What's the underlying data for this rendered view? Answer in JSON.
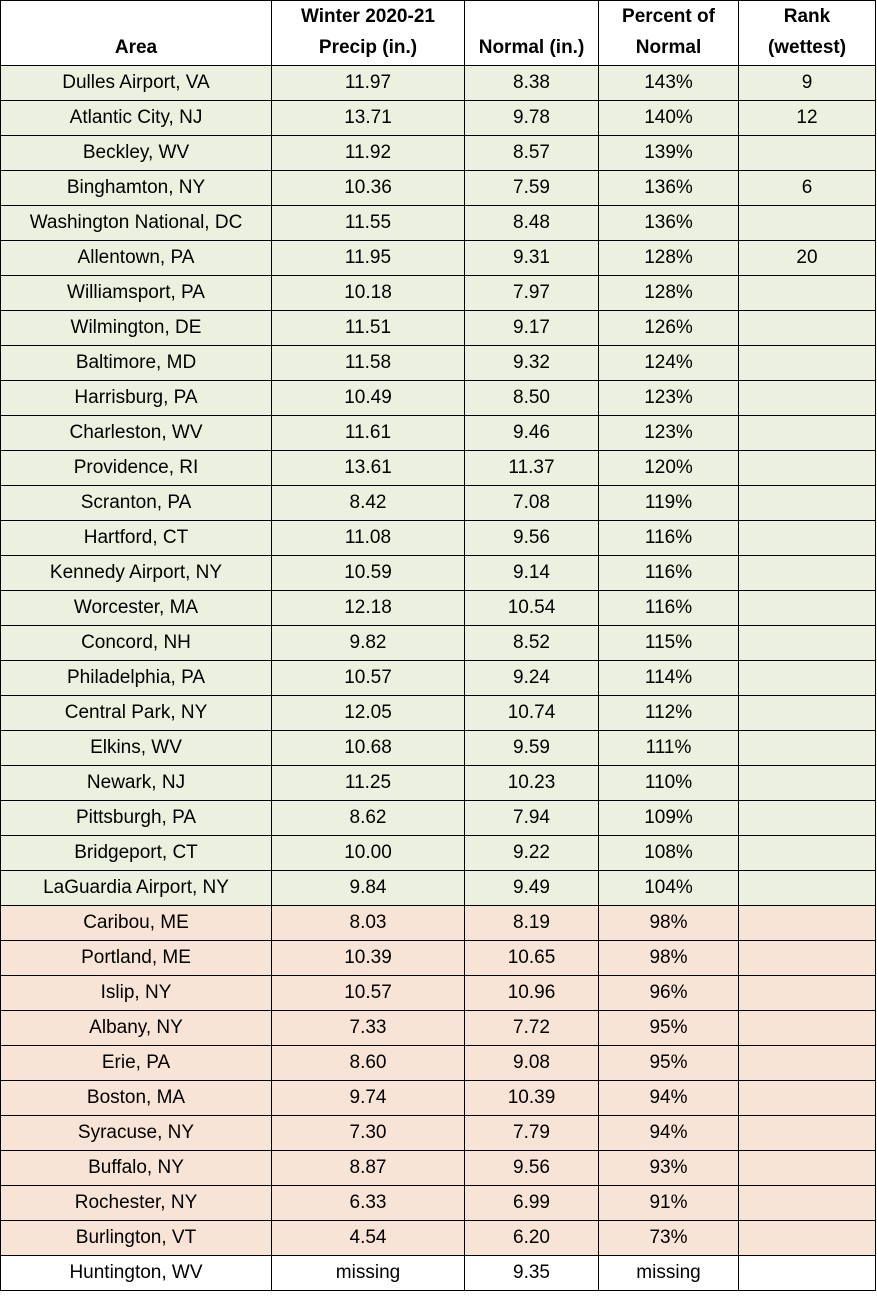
{
  "table": {
    "headers": {
      "area": "Area",
      "precip_line1": "Winter 2020-21",
      "precip_line2": "Precip (in.)",
      "normal": "Normal (in.)",
      "percent_line1": "Percent of",
      "percent_line2": "Normal",
      "rank_line1": "Rank",
      "rank_line2": "(wettest)"
    },
    "colors": {
      "above_normal_fill": "#ebf1de",
      "below_normal_fill": "#f8e4d6",
      "missing_fill": "#ffffff"
    },
    "rows": [
      {
        "area": "Dulles Airport, VA",
        "precip": "11.97",
        "normal": "8.38",
        "percent": "143%",
        "rank": "9",
        "category": "above"
      },
      {
        "area": "Atlantic City, NJ",
        "precip": "13.71",
        "normal": "9.78",
        "percent": "140%",
        "rank": "12",
        "category": "above"
      },
      {
        "area": "Beckley, WV",
        "precip": "11.92",
        "normal": "8.57",
        "percent": "139%",
        "rank": "",
        "category": "above"
      },
      {
        "area": "Binghamton, NY",
        "precip": "10.36",
        "normal": "7.59",
        "percent": "136%",
        "rank": "6",
        "category": "above"
      },
      {
        "area": "Washington National, DC",
        "precip": "11.55",
        "normal": "8.48",
        "percent": "136%",
        "rank": "",
        "category": "above"
      },
      {
        "area": "Allentown, PA",
        "precip": "11.95",
        "normal": "9.31",
        "percent": "128%",
        "rank": "20",
        "category": "above"
      },
      {
        "area": "Williamsport, PA",
        "precip": "10.18",
        "normal": "7.97",
        "percent": "128%",
        "rank": "",
        "category": "above"
      },
      {
        "area": "Wilmington, DE",
        "precip": "11.51",
        "normal": "9.17",
        "percent": "126%",
        "rank": "",
        "category": "above"
      },
      {
        "area": "Baltimore, MD",
        "precip": "11.58",
        "normal": "9.32",
        "percent": "124%",
        "rank": "",
        "category": "above"
      },
      {
        "area": "Harrisburg, PA",
        "precip": "10.49",
        "normal": "8.50",
        "percent": "123%",
        "rank": "",
        "category": "above"
      },
      {
        "area": "Charleston, WV",
        "precip": "11.61",
        "normal": "9.46",
        "percent": "123%",
        "rank": "",
        "category": "above"
      },
      {
        "area": "Providence, RI",
        "precip": "13.61",
        "normal": "11.37",
        "percent": "120%",
        "rank": "",
        "category": "above"
      },
      {
        "area": "Scranton, PA",
        "precip": "8.42",
        "normal": "7.08",
        "percent": "119%",
        "rank": "",
        "category": "above"
      },
      {
        "area": "Hartford, CT",
        "precip": "11.08",
        "normal": "9.56",
        "percent": "116%",
        "rank": "",
        "category": "above"
      },
      {
        "area": "Kennedy Airport, NY",
        "precip": "10.59",
        "normal": "9.14",
        "percent": "116%",
        "rank": "",
        "category": "above"
      },
      {
        "area": "Worcester, MA",
        "precip": "12.18",
        "normal": "10.54",
        "percent": "116%",
        "rank": "",
        "category": "above"
      },
      {
        "area": "Concord, NH",
        "precip": "9.82",
        "normal": "8.52",
        "percent": "115%",
        "rank": "",
        "category": "above"
      },
      {
        "area": "Philadelphia, PA",
        "precip": "10.57",
        "normal": "9.24",
        "percent": "114%",
        "rank": "",
        "category": "above"
      },
      {
        "area": "Central Park, NY",
        "precip": "12.05",
        "normal": "10.74",
        "percent": "112%",
        "rank": "",
        "category": "above"
      },
      {
        "area": "Elkins, WV",
        "precip": "10.68",
        "normal": "9.59",
        "percent": "111%",
        "rank": "",
        "category": "above"
      },
      {
        "area": "Newark, NJ",
        "precip": "11.25",
        "normal": "10.23",
        "percent": "110%",
        "rank": "",
        "category": "above"
      },
      {
        "area": "Pittsburgh, PA",
        "precip": "8.62",
        "normal": "7.94",
        "percent": "109%",
        "rank": "",
        "category": "above"
      },
      {
        "area": "Bridgeport, CT",
        "precip": "10.00",
        "normal": "9.22",
        "percent": "108%",
        "rank": "",
        "category": "above"
      },
      {
        "area": "LaGuardia Airport, NY",
        "precip": "9.84",
        "normal": "9.49",
        "percent": "104%",
        "rank": "",
        "category": "above"
      },
      {
        "area": "Caribou, ME",
        "precip": "8.03",
        "normal": "8.19",
        "percent": "98%",
        "rank": "",
        "category": "below"
      },
      {
        "area": "Portland, ME",
        "precip": "10.39",
        "normal": "10.65",
        "percent": "98%",
        "rank": "",
        "category": "below"
      },
      {
        "area": "Islip, NY",
        "precip": "10.57",
        "normal": "10.96",
        "percent": "96%",
        "rank": "",
        "category": "below"
      },
      {
        "area": "Albany, NY",
        "precip": "7.33",
        "normal": "7.72",
        "percent": "95%",
        "rank": "",
        "category": "below"
      },
      {
        "area": "Erie, PA",
        "precip": "8.60",
        "normal": "9.08",
        "percent": "95%",
        "rank": "",
        "category": "below"
      },
      {
        "area": "Boston, MA",
        "precip": "9.74",
        "normal": "10.39",
        "percent": "94%",
        "rank": "",
        "category": "below"
      },
      {
        "area": "Syracuse, NY",
        "precip": "7.30",
        "normal": "7.79",
        "percent": "94%",
        "rank": "",
        "category": "below"
      },
      {
        "area": "Buffalo, NY",
        "precip": "8.87",
        "normal": "9.56",
        "percent": "93%",
        "rank": "",
        "category": "below"
      },
      {
        "area": "Rochester, NY",
        "precip": "6.33",
        "normal": "6.99",
        "percent": "91%",
        "rank": "",
        "category": "below"
      },
      {
        "area": "Burlington, VT",
        "precip": "4.54",
        "normal": "6.20",
        "percent": "73%",
        "rank": "",
        "category": "below"
      },
      {
        "area": "Huntington, WV",
        "precip": "missing",
        "normal": "9.35",
        "percent": "missing",
        "rank": "",
        "category": "missing"
      }
    ]
  }
}
